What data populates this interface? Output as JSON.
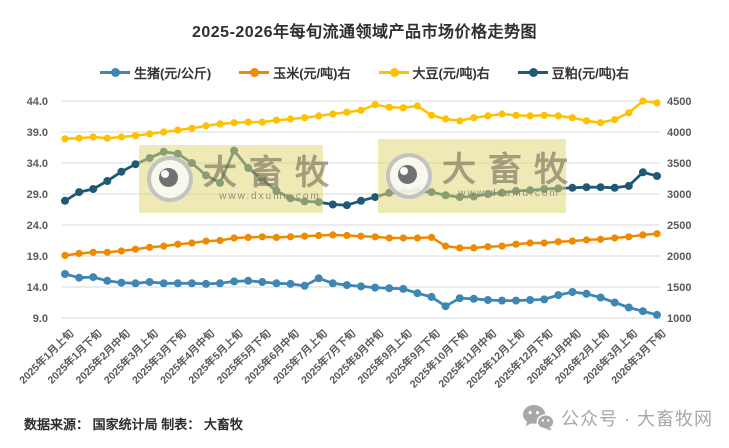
{
  "title": "2025-2026年每旬流通领域产品市场价格走势图",
  "legend": [
    {
      "label": "生猪(元/公斤)",
      "color": "#3E86B3"
    },
    {
      "label": "玉米(元/吨)右",
      "color": "#ED8A00"
    },
    {
      "label": "大豆(元/吨)右",
      "color": "#FFC000"
    },
    {
      "label": "豆粕(元/吨)右",
      "color": "#1F5974"
    }
  ],
  "chart_data": {
    "type": "line",
    "title": "2025-2026年每旬流通领域产品市场价格走势图",
    "grid": true,
    "legend_position": "top",
    "x_tick_labels": [
      "2025年1月上旬",
      "2025年1月下旬",
      "2025年2月中旬",
      "2025年3月上旬",
      "2025年3月下旬",
      "2025年4月中旬",
      "2025年5月上旬",
      "2025年5月下旬",
      "2025年6月中旬",
      "2025年7月上旬",
      "2025年7月下旬",
      "2025年8月中旬",
      "2025年9月上旬",
      "2025年9月下旬",
      "2025年10月下旬",
      "2025年11月中旬",
      "2025年12月上旬",
      "2025年12月下旬",
      "2026年1月中旬",
      "2026年2月上旬",
      "2026年3月上旬",
      "2026年3月下旬"
    ],
    "label_every": 2,
    "axes": {
      "left": {
        "min": 9,
        "max": 44,
        "ticks": [
          "9.0",
          "14.0",
          "19.0",
          "24.0",
          "29.0",
          "34.0",
          "39.0",
          "44.0"
        ]
      },
      "right": {
        "min": 1000,
        "max": 4500,
        "ticks": [
          "1000",
          "1500",
          "2000",
          "2500",
          "3000",
          "3500",
          "4000",
          "4500"
        ]
      }
    },
    "series": [
      {
        "name": "生猪(元/公斤)",
        "axis": "left",
        "color": "#3E86B3",
        "line_width": 2.8,
        "marker_r": 4,
        "values": [
          16.1,
          15.5,
          15.6,
          15.0,
          14.7,
          14.6,
          14.8,
          14.6,
          14.6,
          14.6,
          14.5,
          14.6,
          14.9,
          15.0,
          14.8,
          14.6,
          14.5,
          14.2,
          15.4,
          14.6,
          14.3,
          14.1,
          13.9,
          13.8,
          13.7,
          13.0,
          12.4,
          10.9,
          12.2,
          12.1,
          11.9,
          11.8,
          11.8,
          11.9,
          12.0,
          12.7,
          13.2,
          12.9,
          12.3,
          11.5,
          10.7,
          10.1,
          9.5
        ]
      },
      {
        "name": "玉米(元/吨)右",
        "axis": "right",
        "color": "#ED8A00",
        "line_width": 2.5,
        "marker_r": 3.6,
        "values": [
          2010,
          2040,
          2060,
          2060,
          2080,
          2110,
          2140,
          2160,
          2190,
          2210,
          2240,
          2250,
          2290,
          2300,
          2310,
          2300,
          2310,
          2320,
          2330,
          2340,
          2330,
          2320,
          2310,
          2290,
          2290,
          2290,
          2300,
          2160,
          2130,
          2130,
          2150,
          2160,
          2190,
          2210,
          2210,
          2230,
          2240,
          2260,
          2270,
          2290,
          2310,
          2340,
          2360
        ]
      },
      {
        "name": "大豆(元/吨)右",
        "axis": "right",
        "color": "#FFC000",
        "line_width": 2.5,
        "marker_r": 3.6,
        "values": [
          3890,
          3900,
          3920,
          3900,
          3920,
          3940,
          3970,
          4000,
          4030,
          4060,
          4100,
          4130,
          4150,
          4160,
          4160,
          4190,
          4210,
          4230,
          4260,
          4290,
          4320,
          4350,
          4440,
          4400,
          4390,
          4420,
          4270,
          4210,
          4180,
          4230,
          4260,
          4290,
          4270,
          4260,
          4270,
          4260,
          4230,
          4180,
          4150,
          4200,
          4310,
          4500,
          4470
        ]
      },
      {
        "name": "豆粕(元/吨)右",
        "axis": "right",
        "color": "#1F5974",
        "line_width": 2.8,
        "marker_r": 4,
        "values": [
          2890,
          3030,
          3080,
          3210,
          3360,
          3480,
          3580,
          3680,
          3650,
          3500,
          3300,
          3180,
          3700,
          3420,
          3230,
          3050,
          2930,
          2880,
          2870,
          2830,
          2820,
          2890,
          2950,
          3020,
          3030,
          3050,
          3030,
          2980,
          2950,
          2960,
          3000,
          3020,
          3050,
          3060,
          3080,
          3090,
          3100,
          3110,
          3110,
          3100,
          3130,
          3350,
          3290
        ]
      }
    ]
  },
  "watermark": {
    "brand": "大畜牧",
    "url": "www.dxumu.com"
  },
  "footer": {
    "source": "数据来源： 国家统计局  制表： 大畜牧",
    "wechat_label": "公众号 · 大畜牧网"
  }
}
